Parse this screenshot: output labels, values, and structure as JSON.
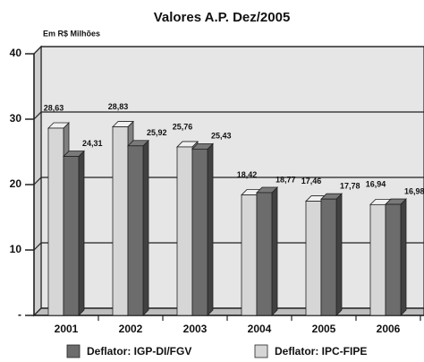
{
  "chart_data": {
    "type": "bar3d",
    "title": "Valores A.P. Dez/2005",
    "ylabel": "Em R$ Milhões",
    "categories": [
      "2001",
      "2002",
      "2003",
      "2004",
      "2005",
      "2006"
    ],
    "series": [
      {
        "name": "Deflator: IPC-FIPE",
        "color": "#d6d6d6",
        "values": [
          28.63,
          28.83,
          25.76,
          18.42,
          17.46,
          16.94
        ],
        "value_labels": [
          "28,63",
          "28,83",
          "25,76",
          "18,42",
          "17,46",
          "16,94"
        ]
      },
      {
        "name": "Deflator: IGP-DI/FGV",
        "color": "#6c6c6c",
        "values": [
          24.31,
          25.92,
          25.43,
          18.77,
          17.78,
          16.98
        ],
        "value_labels": [
          "24,31",
          "25,92",
          "25,43",
          "18,77",
          "17,78",
          "16,98"
        ]
      }
    ],
    "legend_order": [
      1,
      0
    ],
    "ylim": [
      0,
      40
    ],
    "yticks": [
      {
        "value": 0,
        "label": "-"
      },
      10,
      20,
      30,
      40
    ],
    "grid": true
  }
}
